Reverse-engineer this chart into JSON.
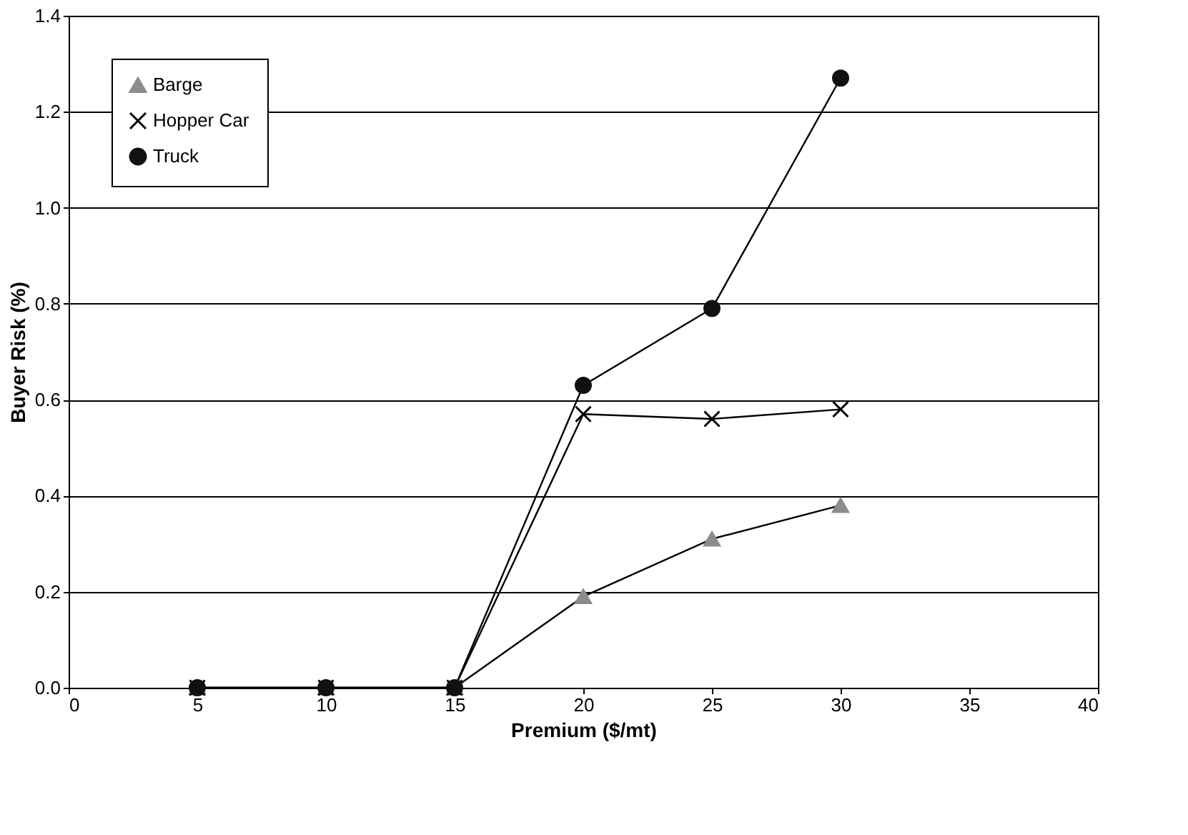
{
  "chart_data": {
    "type": "line",
    "xlabel": "Premium ($/mt)",
    "ylabel": "Buyer Risk (%)",
    "x": [
      5,
      10,
      15,
      20,
      25,
      30
    ],
    "series": [
      {
        "name": "Barge",
        "color": "#8c8c8c",
        "marker": "triangle",
        "values": [
          0,
          0,
          0,
          0.19,
          0.31,
          0.38
        ]
      },
      {
        "name": "Hopper Car",
        "color": "#000000",
        "marker": "cross",
        "values": [
          0,
          0,
          0,
          0.57,
          0.56,
          0.58
        ]
      },
      {
        "name": "Truck",
        "color": "#111111",
        "marker": "circle",
        "values": [
          0,
          0,
          0,
          0.63,
          0.79,
          1.27
        ]
      }
    ],
    "xlim": [
      0,
      40
    ],
    "xticks": [
      0,
      5,
      10,
      15,
      20,
      25,
      30,
      35,
      40
    ],
    "ylim": [
      0,
      1.4
    ],
    "yticks": [
      {
        "value": 0,
        "label": "0.0"
      },
      {
        "value": 0.2,
        "label": "0.2"
      },
      {
        "value": 0.4,
        "label": "0.4"
      },
      {
        "value": 0.6,
        "label": "0.6"
      },
      {
        "value": 0.8,
        "label": "0.8"
      },
      {
        "value": 1.0,
        "label": "1.0"
      },
      {
        "value": 1.2,
        "label": "1.2"
      },
      {
        "value": 1.4,
        "label": "1.4"
      }
    ],
    "grid": "y",
    "legend": "top left",
    "line_style": "solid"
  }
}
